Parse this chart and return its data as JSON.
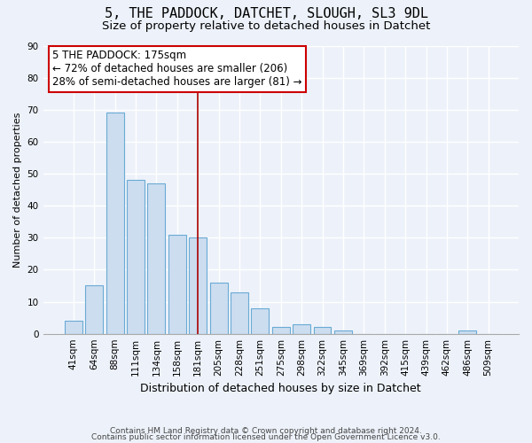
{
  "title": "5, THE PADDOCK, DATCHET, SLOUGH, SL3 9DL",
  "subtitle": "Size of property relative to detached houses in Datchet",
  "xlabel": "Distribution of detached houses by size in Datchet",
  "ylabel": "Number of detached properties",
  "bin_labels": [
    "41sqm",
    "64sqm",
    "88sqm",
    "111sqm",
    "134sqm",
    "158sqm",
    "181sqm",
    "205sqm",
    "228sqm",
    "251sqm",
    "275sqm",
    "298sqm",
    "322sqm",
    "345sqm",
    "369sqm",
    "392sqm",
    "415sqm",
    "439sqm",
    "462sqm",
    "486sqm",
    "509sqm"
  ],
  "bar_heights": [
    4,
    15,
    69,
    48,
    47,
    31,
    30,
    16,
    13,
    8,
    2,
    3,
    2,
    1,
    0,
    0,
    0,
    0,
    0,
    1,
    0
  ],
  "bar_color": "#ccddf0",
  "bar_edge_color": "#6aaad4",
  "ylim": [
    0,
    90
  ],
  "yticks": [
    0,
    10,
    20,
    30,
    40,
    50,
    60,
    70,
    80,
    90
  ],
  "property_bin_index": 6,
  "vline_color": "#aa0000",
  "annotation_text": "5 THE PADDOCK: 175sqm\n← 72% of detached houses are smaller (206)\n28% of semi-detached houses are larger (81) →",
  "annotation_box_color": "#ffffff",
  "annotation_box_edge_color": "#cc0000",
  "footer1": "Contains HM Land Registry data © Crown copyright and database right 2024.",
  "footer2": "Contains public sector information licensed under the Open Government Licence v3.0.",
  "background_color": "#edf2fa",
  "plot_bg_color": "#edf2fa",
  "grid_color": "#ffffff",
  "title_fontsize": 11,
  "subtitle_fontsize": 9.5,
  "xlabel_fontsize": 9,
  "ylabel_fontsize": 8,
  "tick_fontsize": 7.5,
  "footer_fontsize": 6.5,
  "annotation_fontsize": 8.5
}
